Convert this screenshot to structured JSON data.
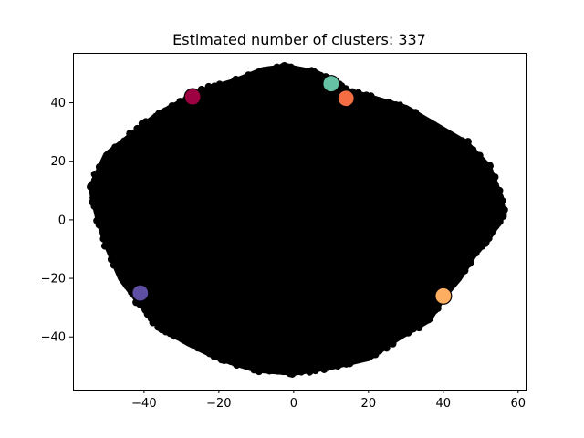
{
  "chart_data": {
    "type": "scatter",
    "title": "Estimated number of clusters: 337",
    "xlabel": "",
    "ylabel": "",
    "xlim": [
      -59,
      62
    ],
    "ylim": [
      -58,
      57
    ],
    "xticks": [
      -40,
      -20,
      0,
      20,
      40,
      60
    ],
    "xtick_labels": [
      "−40",
      "−20",
      "0",
      "20",
      "40",
      "60"
    ],
    "yticks": [
      -40,
      -20,
      0,
      20,
      40
    ],
    "ytick_labels": [
      "−40",
      "−20",
      "0",
      "20",
      "40"
    ],
    "grid": false,
    "legend": "none",
    "point_color": "#000000",
    "dense_region_outline": [
      [
        -54,
        11
      ],
      [
        -50,
        22
      ],
      [
        -42,
        30
      ],
      [
        -36,
        36
      ],
      [
        -30,
        40
      ],
      [
        -24,
        44
      ],
      [
        -16,
        47
      ],
      [
        -8,
        51
      ],
      [
        -2,
        52
      ],
      [
        6,
        50
      ],
      [
        14,
        44
      ],
      [
        22,
        41
      ],
      [
        30,
        38
      ],
      [
        38,
        32
      ],
      [
        46,
        26
      ],
      [
        52,
        18
      ],
      [
        55,
        8
      ],
      [
        56,
        2
      ],
      [
        52,
        -6
      ],
      [
        48,
        -12
      ],
      [
        44,
        -20
      ],
      [
        40,
        -26
      ],
      [
        36,
        -34
      ],
      [
        28,
        -40
      ],
      [
        20,
        -47
      ],
      [
        10,
        -50
      ],
      [
        0,
        -52
      ],
      [
        -10,
        -51
      ],
      [
        -20,
        -47
      ],
      [
        -28,
        -42
      ],
      [
        -36,
        -36
      ],
      [
        -40,
        -30
      ],
      [
        -46,
        -20
      ],
      [
        -50,
        -8
      ],
      [
        -52,
        0
      ]
    ],
    "cluster_centers": [
      {
        "x": -27,
        "y": 42,
        "color": "#9e0142"
      },
      {
        "x": 10,
        "y": 46.5,
        "color": "#66c2a5"
      },
      {
        "x": 14,
        "y": 41.5,
        "color": "#f46d43"
      },
      {
        "x": 40,
        "y": -26,
        "color": "#fdae61"
      },
      {
        "x": -41,
        "y": -25,
        "color": "#5e4fa2"
      }
    ]
  }
}
